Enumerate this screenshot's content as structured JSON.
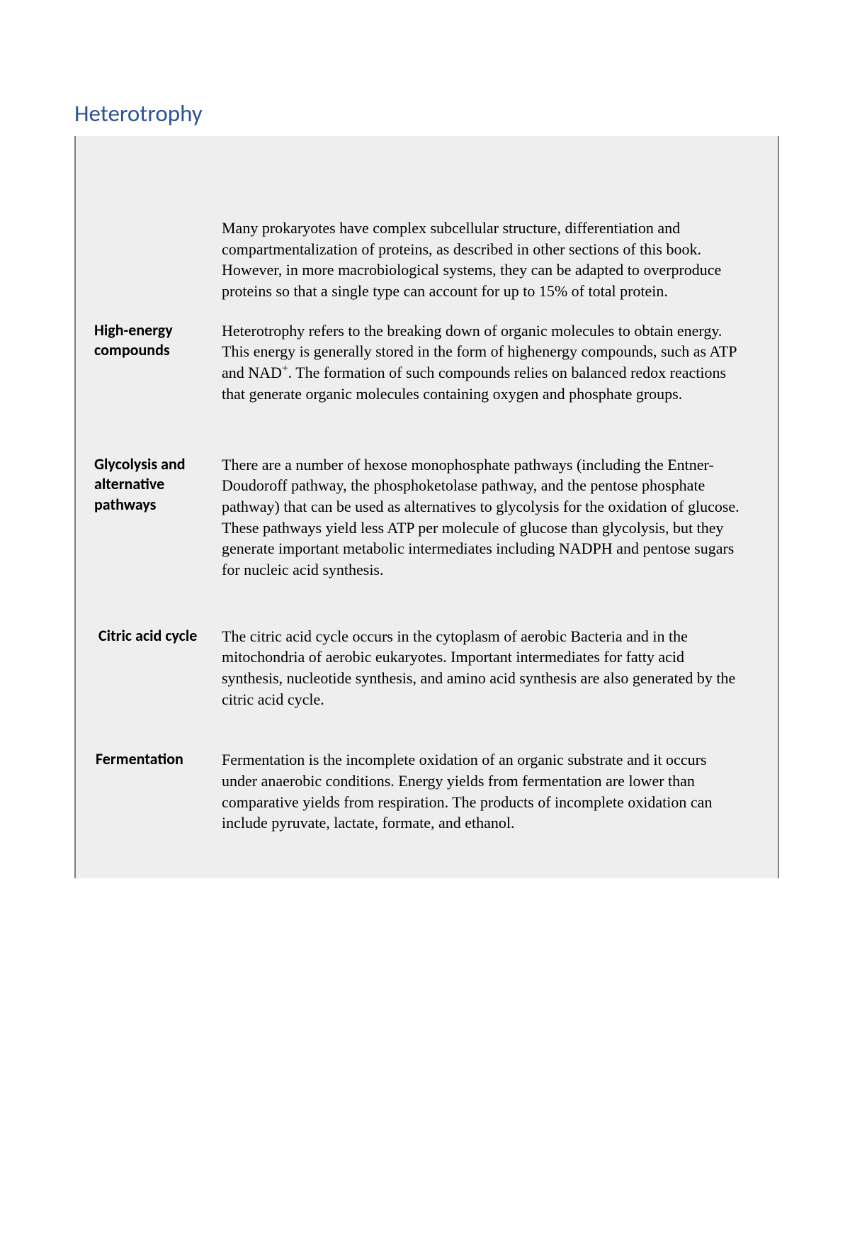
{
  "title": "Heterotrophy",
  "intro": "Many prokaryotes have complex subcellular structure, differentiation and compartmentalization of proteins, as described in other sections of this book. However, in more macrobiological systems, they can be adapted to overproduce proteins so that a single type can account for up to 15% of total protein.",
  "sections": [
    {
      "label": "High-energy compounds",
      "text_pre": "Heterotrophy refers to the breaking down of organic molecules to obtain energy. This energy is generally stored in the form of highenergy compounds, such as ATP and NAD",
      "text_post": ". The formation of such compounds relies on balanced redox reactions that generate organic molecules containing oxygen and phosphate groups.",
      "has_superscript": true,
      "superscript": "+"
    },
    {
      "label": "Glycolysis and alternative pathways",
      "text": "There are a number of hexose monophosphate pathways (including the Entner-Doudoroff pathway, the phosphoketolase pathway, and the pentose phosphate pathway) that can be used as alternatives to glycolysis for the oxidation of glucose. These pathways yield less ATP per molecule of glucose than glycolysis, but they generate important metabolic intermediates including NADPH and pentose sugars for nucleic acid synthesis."
    },
    {
      "label": "Citric acid cycle",
      "text": "The citric acid cycle occurs in the cytoplasm of aerobic Bacteria and in the mitochondria of aerobic eukaryotes. Important intermediates for fatty acid synthesis, nucleotide synthesis, and amino acid synthesis are also generated by the citric acid cycle."
    },
    {
      "label": "Fermentation",
      "text": "Fermentation is the incomplete oxidation of an organic substrate and it occurs under anaerobic conditions. Energy yields from fermentation are lower than comparative yields from respiration. The products of incomplete oxidation can include pyruvate, lactate, formate, and ethanol."
    }
  ],
  "colors": {
    "title_color": "#2e5496",
    "box_background": "#eeeeee",
    "box_border": "#808080",
    "text_color": "#000000",
    "page_background": "#ffffff"
  },
  "typography": {
    "title_font": "Calibri",
    "title_size_pt": 24,
    "label_font": "Calibri",
    "label_size_pt": 16,
    "label_weight": "bold",
    "body_font": "Times New Roman",
    "body_size_pt": 16
  }
}
